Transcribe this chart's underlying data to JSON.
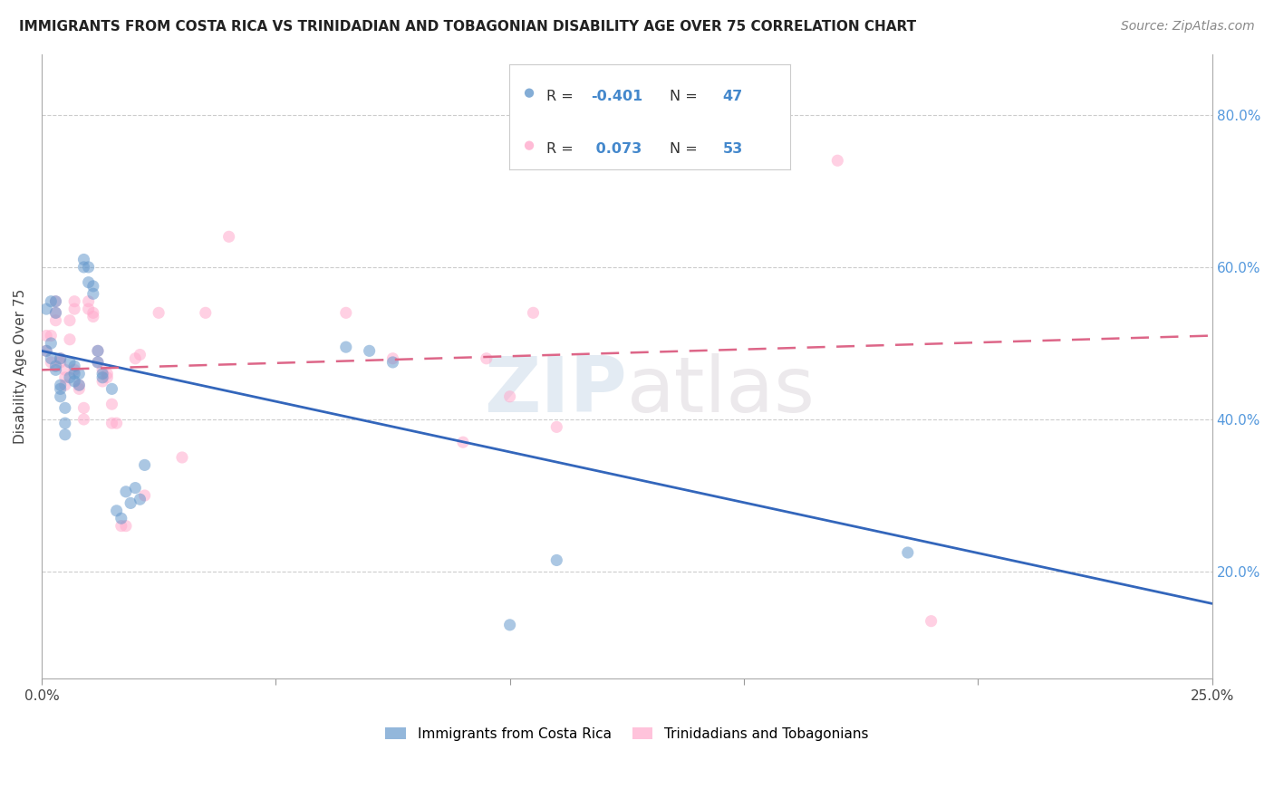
{
  "title": "IMMIGRANTS FROM COSTA RICA VS TRINIDADIAN AND TOBAGONIAN DISABILITY AGE OVER 75 CORRELATION CHART",
  "source": "Source: ZipAtlas.com",
  "ylabel": "Disability Age Over 75",
  "legend_label1": "Immigrants from Costa Rica",
  "legend_label2": "Trinidadians and Tobagonians",
  "xlim": [
    0.0,
    0.25
  ],
  "ylim": [
    0.06,
    0.88
  ],
  "yticks": [
    0.2,
    0.4,
    0.6,
    0.8
  ],
  "ytick_labels": [
    "20.0%",
    "40.0%",
    "60.0%",
    "80.0%"
  ],
  "xticks": [
    0.0,
    0.05,
    0.1,
    0.15,
    0.2,
    0.25
  ],
  "xtick_labels": [
    "0.0%",
    "",
    "",
    "",
    "",
    "25.0%"
  ],
  "blue_scatter_x": [
    0.001,
    0.001,
    0.002,
    0.002,
    0.002,
    0.003,
    0.003,
    0.003,
    0.003,
    0.004,
    0.004,
    0.004,
    0.004,
    0.005,
    0.005,
    0.005,
    0.006,
    0.006,
    0.007,
    0.007,
    0.007,
    0.008,
    0.008,
    0.009,
    0.009,
    0.01,
    0.01,
    0.011,
    0.011,
    0.012,
    0.012,
    0.013,
    0.013,
    0.015,
    0.016,
    0.017,
    0.018,
    0.019,
    0.02,
    0.021,
    0.022,
    0.065,
    0.07,
    0.075,
    0.1,
    0.185,
    0.11
  ],
  "blue_scatter_y": [
    0.49,
    0.545,
    0.5,
    0.555,
    0.48,
    0.54,
    0.555,
    0.47,
    0.465,
    0.48,
    0.44,
    0.43,
    0.445,
    0.415,
    0.395,
    0.38,
    0.475,
    0.455,
    0.47,
    0.45,
    0.46,
    0.46,
    0.445,
    0.6,
    0.61,
    0.6,
    0.58,
    0.565,
    0.575,
    0.49,
    0.475,
    0.46,
    0.455,
    0.44,
    0.28,
    0.27,
    0.305,
    0.29,
    0.31,
    0.295,
    0.34,
    0.495,
    0.49,
    0.475,
    0.13,
    0.225,
    0.215
  ],
  "pink_scatter_x": [
    0.001,
    0.001,
    0.002,
    0.002,
    0.003,
    0.003,
    0.003,
    0.004,
    0.004,
    0.005,
    0.005,
    0.005,
    0.006,
    0.006,
    0.007,
    0.007,
    0.007,
    0.008,
    0.008,
    0.009,
    0.009,
    0.01,
    0.01,
    0.011,
    0.011,
    0.012,
    0.012,
    0.013,
    0.013,
    0.014,
    0.014,
    0.015,
    0.015,
    0.016,
    0.017,
    0.018,
    0.02,
    0.021,
    0.022,
    0.025,
    0.03,
    0.035,
    0.04,
    0.065,
    0.075,
    0.09,
    0.095,
    0.1,
    0.105,
    0.11,
    0.115,
    0.17,
    0.19
  ],
  "pink_scatter_y": [
    0.49,
    0.51,
    0.51,
    0.475,
    0.54,
    0.555,
    0.53,
    0.48,
    0.475,
    0.465,
    0.455,
    0.445,
    0.53,
    0.505,
    0.555,
    0.545,
    0.465,
    0.445,
    0.44,
    0.415,
    0.4,
    0.555,
    0.545,
    0.54,
    0.535,
    0.49,
    0.475,
    0.465,
    0.45,
    0.46,
    0.455,
    0.42,
    0.395,
    0.395,
    0.26,
    0.26,
    0.48,
    0.485,
    0.3,
    0.54,
    0.35,
    0.54,
    0.64,
    0.54,
    0.48,
    0.37,
    0.48,
    0.43,
    0.54,
    0.39,
    0.82,
    0.74,
    0.135
  ],
  "blue_line_x0": 0.0,
  "blue_line_x1": 0.25,
  "blue_line_y0": 0.49,
  "blue_line_y1": 0.158,
  "pink_line_x0": 0.0,
  "pink_line_x1": 0.25,
  "pink_line_y0": 0.465,
  "pink_line_y1": 0.51,
  "blue_color": "#6699cc",
  "pink_color": "#ffaacc",
  "blue_line_color": "#3366bb",
  "pink_line_color": "#dd6688",
  "watermark_zip": "ZIP",
  "watermark_atlas": "atlas",
  "marker_size": 90,
  "marker_alpha": 0.55,
  "background_color": "#ffffff",
  "grid_color": "#cccccc",
  "legend_R1": "-0.401",
  "legend_N1": "47",
  "legend_R2": "0.073",
  "legend_N2": "53"
}
